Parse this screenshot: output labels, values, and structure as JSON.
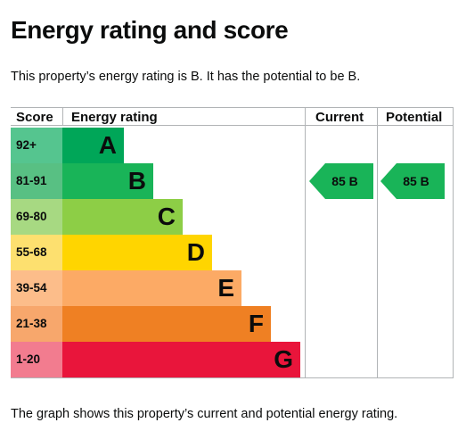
{
  "heading": "Energy rating and score",
  "intro": "This property’s energy rating is B. It has the potential to be B.",
  "footer": "The graph shows this property’s current and potential energy rating.",
  "table_headers": {
    "score": "Score",
    "energy_rating": "Energy rating",
    "current": "Current",
    "potential": "Potential"
  },
  "bands": [
    {
      "score": "92+",
      "letter": "A",
      "score_bg": "#55c58f",
      "bar_color": "#00a658",
      "bar_fraction": 0.23
    },
    {
      "score": "81-91",
      "letter": "B",
      "score_bg": "#58c083",
      "bar_color": "#19b458",
      "bar_fraction": 0.34
    },
    {
      "score": "69-80",
      "letter": "C",
      "score_bg": "#a7d982",
      "bar_color": "#8dce46",
      "bar_fraction": 0.45
    },
    {
      "score": "55-68",
      "letter": "D",
      "score_bg": "#fde06f",
      "bar_color": "#ffd500",
      "bar_fraction": 0.56
    },
    {
      "score": "39-54",
      "letter": "E",
      "score_bg": "#fcbd8a",
      "bar_color": "#fcaa65",
      "bar_fraction": 0.67
    },
    {
      "score": "21-38",
      "letter": "F",
      "score_bg": "#f7a76c",
      "bar_color": "#ef8023",
      "bar_fraction": 0.78
    },
    {
      "score": "1-20",
      "letter": "G",
      "score_bg": "#f27c8f",
      "bar_color": "#e9153b",
      "bar_fraction": 0.89
    }
  ],
  "current": {
    "label": "85 B",
    "band_index": 1,
    "color": "#19b458"
  },
  "potential": {
    "label": "85 B",
    "band_index": 1,
    "color": "#19b458"
  }
}
